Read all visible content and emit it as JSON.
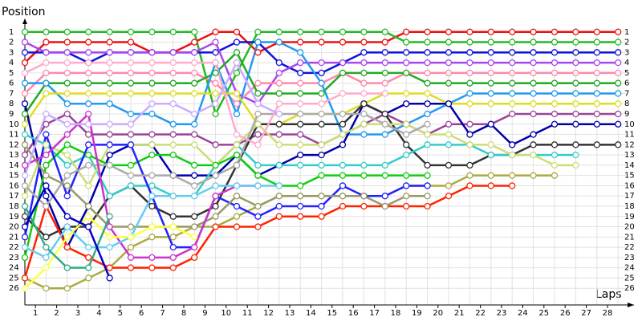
{
  "chart_data": {
    "type": "line",
    "y_label": "Position",
    "x_label": "Laps",
    "x": [
      0,
      1,
      2,
      3,
      4,
      5,
      6,
      7,
      8,
      9,
      10,
      11,
      12,
      13,
      14,
      15,
      16,
      17,
      18,
      19,
      20,
      21,
      22,
      23,
      24,
      25,
      26,
      27,
      28
    ],
    "xlim": [
      0,
      28.75
    ],
    "xticks": [
      {
        "value": 0.5,
        "label": "1"
      },
      {
        "value": 1.5,
        "label": "2"
      },
      {
        "value": 2.5,
        "label": "3"
      },
      {
        "value": 3.5,
        "label": "4"
      },
      {
        "value": 4.5,
        "label": "5"
      },
      {
        "value": 5.5,
        "label": "6"
      },
      {
        "value": 6.5,
        "label": "7"
      },
      {
        "value": 7.5,
        "label": "8"
      },
      {
        "value": 8.5,
        "label": "9"
      },
      {
        "value": 9.5,
        "label": "10"
      },
      {
        "value": 10.5,
        "label": "11"
      },
      {
        "value": 11.5,
        "label": "12"
      },
      {
        "value": 12.5,
        "label": "13"
      },
      {
        "value": 13.5,
        "label": "14"
      },
      {
        "value": 14.5,
        "label": "15"
      },
      {
        "value": 15.5,
        "label": "16"
      },
      {
        "value": 16.5,
        "label": "17"
      },
      {
        "value": 17.5,
        "label": "18"
      },
      {
        "value": 18.5,
        "label": "19"
      },
      {
        "value": 19.5,
        "label": "20"
      },
      {
        "value": 20.5,
        "label": "21"
      },
      {
        "value": 21.5,
        "label": "22"
      },
      {
        "value": 22.5,
        "label": "23"
      },
      {
        "value": 23.5,
        "label": "24"
      },
      {
        "value": 24.5,
        "label": "25"
      },
      {
        "value": 25.5,
        "label": "26"
      },
      {
        "value": 26.5,
        "label": "27"
      },
      {
        "value": 27.5,
        "label": "28"
      }
    ],
    "ylim": [
      0,
      27
    ],
    "y_inverted": true,
    "yticks": [
      1,
      2,
      3,
      4,
      5,
      6,
      7,
      8,
      9,
      10,
      11,
      12,
      13,
      14,
      15,
      16,
      17,
      18,
      19,
      20,
      21,
      22,
      23,
      24,
      25,
      26
    ],
    "grid": true,
    "series": [
      {
        "color": "#ee1111",
        "values": [
          4,
          2,
          2,
          2,
          2,
          2,
          3,
          3,
          2,
          1,
          1,
          3,
          2,
          2,
          2,
          2,
          2,
          2,
          1,
          1,
          1,
          1,
          1,
          1,
          1,
          1,
          1,
          1,
          1
        ]
      },
      {
        "color": "#22bb22",
        "values": [
          1,
          1,
          1,
          1,
          1,
          1,
          1,
          1,
          1,
          9,
          5,
          1,
          1,
          1,
          1,
          1,
          1,
          1,
          2,
          2,
          2,
          2,
          2,
          2,
          2,
          2,
          2,
          2,
          2
        ]
      },
      {
        "color": "#1111dd",
        "values": [
          3,
          3,
          3,
          4,
          3,
          3,
          3,
          3,
          3,
          3,
          2,
          2,
          4,
          5,
          5,
          4,
          3,
          3,
          3,
          3,
          3,
          3,
          3,
          3,
          3,
          3,
          3,
          3,
          3
        ]
      },
      {
        "color": "#aa44ee",
        "values": [
          2,
          3,
          3,
          3,
          3,
          3,
          3,
          3,
          3,
          2,
          7,
          8,
          5,
          4,
          4,
          4,
          4,
          4,
          4,
          4,
          4,
          4,
          4,
          4,
          4,
          4,
          4,
          4,
          4
        ]
      },
      {
        "color": "#ff88aa",
        "values": [
          7,
          5,
          5,
          5,
          5,
          5,
          5,
          5,
          5,
          6,
          8,
          6,
          6,
          6,
          6,
          5,
          6,
          6,
          5,
          5,
          5,
          5,
          5,
          5,
          5,
          5,
          5,
          5,
          5
        ]
      },
      {
        "color": "#22aa22",
        "values": [
          9,
          6,
          6,
          6,
          6,
          6,
          6,
          6,
          6,
          5,
          3,
          7,
          7,
          7,
          7,
          5,
          5,
          5,
          5,
          6,
          6,
          6,
          6,
          6,
          6,
          6,
          6,
          6,
          6
        ]
      },
      {
        "color": "#2299ee",
        "values": [
          6,
          6,
          8,
          8,
          8,
          9,
          9,
          10,
          10,
          4,
          9,
          2,
          2,
          3,
          6,
          11,
          11,
          11,
          10,
          9,
          8,
          7,
          7,
          7,
          7,
          7,
          7,
          7,
          7
        ]
      },
      {
        "color": "#dddd22",
        "values": [
          10,
          7,
          7,
          7,
          7,
          7,
          7,
          7,
          7,
          7,
          7,
          10,
          10,
          9,
          9,
          9,
          8,
          7,
          7,
          7,
          8,
          8,
          8,
          8,
          8,
          8,
          8,
          8,
          8
        ]
      },
      {
        "color": "#994499",
        "values": [
          13,
          10,
          9,
          11,
          11,
          11,
          11,
          11,
          11,
          12,
          12,
          11,
          11,
          11,
          12,
          11,
          10,
          9,
          10,
          11,
          10,
          10,
          10,
          9,
          9,
          9,
          9,
          9,
          9
        ]
      },
      {
        "color": "#0000aa",
        "values": [
          8,
          17,
          22,
          18,
          13,
          12,
          12,
          15,
          15,
          15,
          13,
          15,
          14,
          13,
          13,
          12,
          8,
          9,
          8,
          8,
          8,
          11,
          10,
          12,
          11,
          10,
          10,
          10,
          10
        ]
      },
      {
        "color": "#333333",
        "values": [
          19,
          21,
          20,
          20,
          17,
          16,
          18,
          19,
          19,
          18,
          14,
          10,
          10,
          10,
          10,
          10,
          8,
          9,
          12,
          14,
          14,
          14,
          13,
          13,
          12,
          12,
          12,
          12,
          12
        ]
      },
      {
        "color": "#33cccc",
        "values": [
          11,
          12,
          14,
          13,
          17,
          16,
          16,
          17,
          17,
          14,
          12,
          14,
          14,
          14,
          14,
          14,
          14,
          14,
          13,
          12,
          12,
          12,
          13,
          13,
          13,
          13,
          13,
          null,
          null
        ]
      },
      {
        "color": "#ccdd77",
        "values": [
          17,
          12,
          13,
          16,
          12,
          12,
          12,
          12,
          12,
          14,
          12,
          10,
          12,
          12,
          12,
          11,
          10,
          10,
          10,
          11,
          11,
          12,
          12,
          13,
          13,
          14,
          14,
          null,
          null
        ]
      },
      {
        "color": "#aaaa44",
        "values": [
          25,
          26,
          26,
          25,
          24,
          22,
          21,
          21,
          20,
          20,
          19,
          18,
          17,
          17,
          17,
          17,
          17,
          17,
          16,
          16,
          16,
          15,
          15,
          15,
          15,
          15,
          null,
          null,
          null
        ]
      },
      {
        "color": "#ff2200",
        "values": [
          25,
          18,
          22,
          23,
          24,
          24,
          24,
          24,
          23,
          20,
          20,
          20,
          19,
          19,
          19,
          18,
          18,
          18,
          18,
          18,
          17,
          16,
          16,
          16,
          null,
          null,
          null,
          null,
          null
        ]
      },
      {
        "color": "#11cc11",
        "values": [
          23,
          14,
          12,
          13,
          14,
          14,
          13,
          13,
          14,
          14,
          13,
          15,
          16,
          16,
          15,
          15,
          15,
          15,
          15,
          15,
          null,
          null,
          null,
          null,
          null,
          null,
          null,
          null,
          null
        ]
      },
      {
        "color": "#2222ff",
        "values": [
          21,
          11,
          17,
          12,
          12,
          12,
          17,
          22,
          22,
          17,
          18,
          19,
          18,
          18,
          18,
          16,
          17,
          17,
          16,
          16,
          null,
          null,
          null,
          null,
          null,
          null,
          null,
          null,
          null
        ]
      },
      {
        "color": "#aaaaaa",
        "values": [
          16,
          18,
          15,
          14,
          14,
          15,
          15,
          15,
          16,
          15,
          14,
          9,
          9,
          9,
          9,
          9,
          9,
          10,
          11,
          10,
          null,
          null,
          null,
          null,
          null,
          null,
          null,
          null,
          null
        ]
      },
      {
        "color": "#999966",
        "values": [
          12,
          15,
          16,
          18,
          20,
          20,
          20,
          20,
          20,
          19,
          17,
          18,
          17,
          17,
          17,
          17,
          17,
          18,
          17,
          17,
          null,
          null,
          null,
          null,
          null,
          null,
          null,
          null,
          null
        ]
      },
      {
        "color": "#ffaacc",
        "values": [
          5,
          4,
          4,
          4,
          4,
          4,
          4,
          4,
          4,
          4,
          11,
          12,
          8,
          8,
          8,
          7,
          7,
          7,
          null,
          null,
          null,
          null,
          null,
          null,
          null,
          null,
          null,
          null,
          null
        ]
      },
      {
        "color": "#cc33cc",
        "values": [
          14,
          13,
          11,
          9,
          20,
          23,
          23,
          23,
          22,
          17,
          16,
          16,
          null,
          null,
          null,
          null,
          null,
          null,
          null,
          null,
          null,
          null,
          null,
          null,
          null,
          null,
          null,
          null,
          null
        ]
      },
      {
        "color": "#ccaaff",
        "values": [
          15,
          9,
          10,
          10,
          10,
          10,
          8,
          8,
          9,
          8,
          4,
          8,
          9,
          null,
          null,
          null,
          null,
          null,
          null,
          null,
          null,
          null,
          null,
          null,
          null,
          null,
          null,
          null,
          null
        ]
      },
      {
        "color": "#66ccee",
        "values": [
          22,
          23,
          20,
          22,
          22,
          21,
          17,
          17,
          17,
          16,
          16,
          16,
          16,
          null,
          null,
          null,
          null,
          null,
          null,
          null,
          null,
          null,
          null,
          null,
          null,
          null,
          null,
          null,
          null
        ]
      },
      {
        "color": "#ffff44",
        "values": [
          26,
          24,
          21,
          19,
          21,
          21,
          20,
          20,
          21,
          null,
          null,
          null,
          null,
          null,
          null,
          null,
          null,
          null,
          null,
          null,
          null,
          null,
          null,
          null,
          null,
          null,
          null,
          null,
          null
        ]
      },
      {
        "color": "#33aa88",
        "values": [
          18,
          22,
          24,
          24,
          19,
          null,
          null,
          null,
          null,
          null,
          null,
          null,
          null,
          null,
          null,
          null,
          null,
          null,
          null,
          null,
          null,
          null,
          null,
          null,
          null,
          null,
          null,
          null,
          null
        ]
      },
      {
        "color": "#0000cc",
        "values": [
          20,
          16,
          19,
          20,
          25,
          null,
          null,
          null,
          null,
          null,
          null,
          null,
          null,
          null,
          null,
          null,
          null,
          null,
          null,
          null,
          null,
          null,
          null,
          null,
          null,
          null,
          null,
          null,
          null
        ]
      }
    ]
  }
}
